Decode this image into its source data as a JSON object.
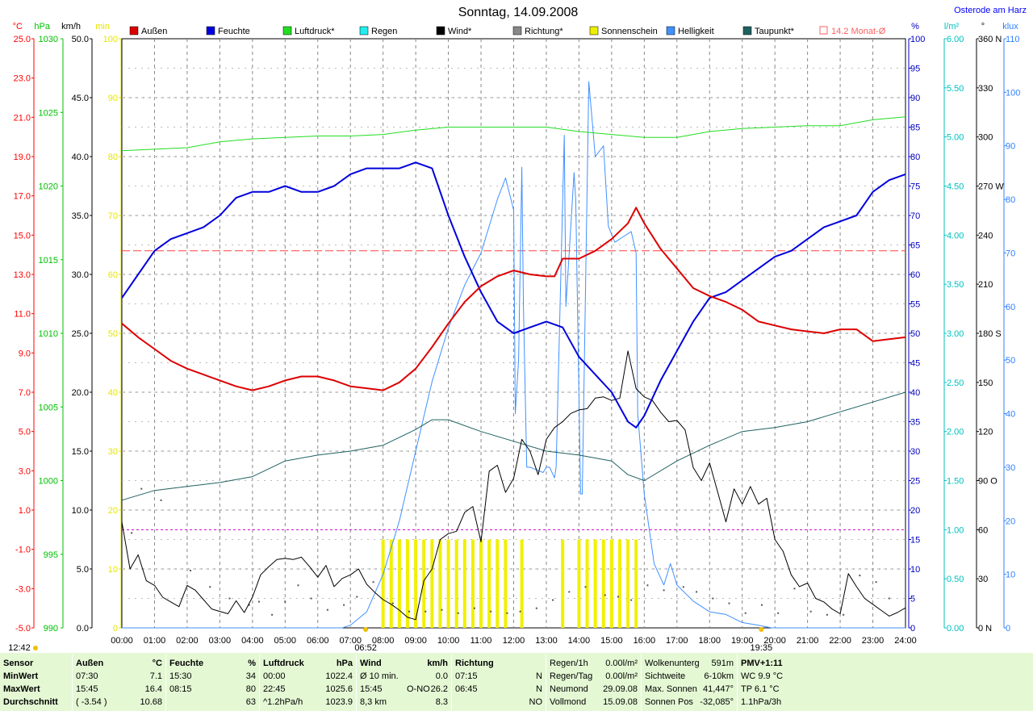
{
  "chart_data": {
    "type": "line",
    "title": "Sonntag, 14.09.2008",
    "location": "Osterode am Harz",
    "x_ticks": [
      "00:00",
      "01:00",
      "02:00",
      "03:00",
      "04:00",
      "05:00",
      "06:00",
      "07:00",
      "08:00",
      "09:00",
      "10:00",
      "11:00",
      "12:00",
      "13:00",
      "14:00",
      "15:00",
      "16:00",
      "17:00",
      "18:00",
      "19:00",
      "20:00",
      "21:00",
      "22:00",
      "23:00",
      "24:00"
    ],
    "axes": {
      "temp": {
        "unit": "°C",
        "ticks": [
          "25.0",
          "23.0",
          "21.0",
          "19.0",
          "17.0",
          "15.0",
          "13.0",
          "11.0",
          "9.0",
          "7.0",
          "5.0",
          "3.0",
          "1.0",
          "-1.0",
          "-3.0",
          "-5.0"
        ],
        "color": "#ff0000"
      },
      "pressure": {
        "unit": "hPa",
        "ticks": [
          "1030",
          "1025",
          "1020",
          "1015",
          "1010",
          "1005",
          "1000",
          "995",
          "990"
        ],
        "color": "#00c000"
      },
      "wind": {
        "unit": "km/h",
        "ticks": [
          "50.0",
          "45.0",
          "40.0",
          "35.0",
          "30.0",
          "25.0",
          "20.0",
          "15.0",
          "10.0",
          "5.0",
          "0.0"
        ],
        "color": "#000000"
      },
      "sun": {
        "unit": "min",
        "ticks": [
          "100",
          "90",
          "80",
          "70",
          "60",
          "50",
          "40",
          "30",
          "20",
          "10",
          "0"
        ],
        "color": "#e6e600"
      },
      "humidity": {
        "unit": "%",
        "ticks": [
          "100",
          "95",
          "90",
          "85",
          "80",
          "75",
          "70",
          "65",
          "60",
          "55",
          "50",
          "45",
          "40",
          "35",
          "30",
          "25",
          "20",
          "15",
          "10",
          "5",
          "0"
        ],
        "color": "#0000c0"
      },
      "rain": {
        "unit": "l/m²",
        "ticks": [
          "6.00",
          "5.50",
          "5.00",
          "4.50",
          "4.00",
          "3.50",
          "3.00",
          "2.50",
          "2.00",
          "1.50",
          "1.00",
          "0.50",
          "0.00"
        ],
        "color": "#00c0c0"
      },
      "direction": {
        "unit": "°",
        "ticks": [
          "360 N",
          "330",
          "300",
          "270 W",
          "240",
          "210",
          "180 S",
          "150",
          "120",
          "90 O",
          "60",
          "30",
          "0   N"
        ],
        "color": "#000000"
      },
      "brightness": {
        "unit": "klux",
        "ticks": [
          "110",
          "100",
          "90",
          "80",
          "70",
          "60",
          "50",
          "40",
          "30",
          "20",
          "10",
          "0"
        ],
        "color": "#3080ff"
      }
    },
    "legend": [
      {
        "name": "Außen",
        "color": "#dd0000"
      },
      {
        "name": "Feuchte",
        "color": "#0000dd"
      },
      {
        "name": "Luftdruck*",
        "color": "#22dd22"
      },
      {
        "name": "Regen",
        "color": "#22eeee"
      },
      {
        "name": "Wind*",
        "color": "#000000"
      },
      {
        "name": "Richtung*",
        "color": "#888888"
      },
      {
        "name": "Sonnenschein",
        "color": "#eeee00"
      },
      {
        "name": "Helligkeit",
        "color": "#4090ff"
      },
      {
        "name": "Taupunkt*",
        "color": "#206060"
      },
      {
        "name": "14.2 Monat-Ø",
        "color": "#ff6060",
        "outline": true
      }
    ],
    "month_avg_temp": 14.2,
    "sunrise": "06:52",
    "sunset": "19:35",
    "moon_culmination": "12:42",
    "series": {
      "temperature": {
        "x": [
          0,
          0.5,
          1,
          1.5,
          2,
          2.5,
          3,
          3.5,
          4,
          4.5,
          5,
          5.5,
          6,
          6.5,
          7,
          7.5,
          8,
          8.5,
          9,
          9.5,
          10,
          10.5,
          11,
          11.5,
          12,
          12.5,
          13,
          13.25,
          13.5,
          14,
          14.5,
          15,
          15.5,
          15.75,
          16,
          16.5,
          17,
          17.5,
          18,
          18.5,
          19,
          19.5,
          20,
          20.5,
          21,
          21.5,
          22,
          22.5,
          23,
          23.5,
          24
        ],
        "y": [
          10.5,
          9.8,
          9.2,
          8.6,
          8.2,
          7.9,
          7.6,
          7.3,
          7.1,
          7.3,
          7.6,
          7.8,
          7.8,
          7.6,
          7.3,
          7.2,
          7.1,
          7.5,
          8.2,
          9.3,
          10.5,
          11.6,
          12.4,
          12.9,
          13.2,
          13.0,
          12.9,
          12.9,
          13.8,
          13.8,
          14.2,
          14.8,
          15.6,
          16.4,
          15.6,
          14.3,
          13.3,
          12.3,
          11.9,
          11.6,
          11.2,
          10.6,
          10.4,
          10.2,
          10.1,
          10.0,
          10.2,
          10.2,
          9.6,
          9.7,
          9.8
        ]
      },
      "humidity": {
        "x": [
          0,
          0.5,
          1,
          1.5,
          2,
          2.5,
          3,
          3.5,
          4,
          4.5,
          5,
          5.5,
          6,
          6.5,
          7,
          7.5,
          8,
          8.5,
          9,
          9.5,
          10,
          10.5,
          11,
          11.5,
          12,
          12.5,
          13,
          13.5,
          14,
          14.5,
          15,
          15.5,
          15.75,
          16,
          16.5,
          17,
          17.5,
          18,
          18.5,
          19,
          19.5,
          20,
          20.5,
          21,
          21.5,
          22,
          22.5,
          23,
          23.5,
          24
        ],
        "y": [
          56,
          60,
          64,
          66,
          67,
          68,
          70,
          73,
          74,
          74,
          75,
          74,
          74,
          75,
          77,
          78,
          78,
          78,
          79,
          78,
          70,
          63,
          57,
          52,
          50,
          51,
          52,
          51,
          46,
          43,
          40,
          35,
          34,
          36,
          42,
          47,
          52,
          56,
          57,
          59,
          61,
          63,
          64,
          66,
          68,
          69,
          70,
          74,
          76,
          77
        ]
      },
      "pressure": {
        "x": [
          0,
          1,
          2,
          3,
          3.5,
          4,
          5,
          6,
          7,
          8,
          9,
          10,
          11,
          12,
          13,
          14,
          15,
          16,
          17,
          18,
          19,
          20,
          21,
          22,
          23,
          24
        ],
        "y": [
          1022.4,
          1022.5,
          1022.6,
          1023.0,
          1023.1,
          1023.2,
          1023.3,
          1023.4,
          1023.4,
          1023.5,
          1023.8,
          1024.0,
          1024.0,
          1024.0,
          1024.0,
          1023.7,
          1023.5,
          1023.3,
          1023.3,
          1023.7,
          1023.9,
          1024.0,
          1024.1,
          1024.1,
          1024.5,
          1024.7
        ]
      },
      "dewpoint": {
        "x": [
          0,
          1,
          2,
          3,
          4,
          5,
          6,
          7,
          8,
          9,
          9.5,
          10,
          11,
          12,
          13,
          14,
          15,
          15.5,
          16,
          17,
          18,
          19,
          20,
          21,
          22,
          23,
          24
        ],
        "y": [
          1.5,
          2.0,
          2.2,
          2.4,
          2.7,
          3.5,
          3.8,
          4.0,
          4.3,
          5.1,
          5.6,
          5.6,
          5.0,
          4.5,
          4.0,
          3.8,
          3.5,
          2.8,
          2.5,
          3.5,
          4.3,
          5.0,
          5.2,
          5.5,
          6.0,
          6.5,
          7.0
        ]
      },
      "wind": {
        "x": [
          0,
          0.25,
          0.5,
          0.75,
          1,
          1.25,
          1.5,
          1.75,
          2,
          2.25,
          2.5,
          2.75,
          3,
          3.25,
          3.5,
          3.75,
          4,
          4.25,
          4.5,
          4.75,
          5,
          5.25,
          5.5,
          5.75,
          6,
          6.25,
          6.5,
          6.75,
          7,
          7.25,
          7.5,
          7.75,
          8,
          8.25,
          8.5,
          8.75,
          9,
          9.25,
          9.5,
          9.75,
          10,
          10.25,
          10.5,
          10.75,
          11,
          11.25,
          11.5,
          11.75,
          12,
          12.25,
          12.5,
          12.75,
          13,
          13.25,
          13.5,
          13.75,
          14,
          14.25,
          14.5,
          14.75,
          15,
          15.25,
          15.5,
          15.75,
          16,
          16.25,
          16.5,
          16.75,
          17,
          17.25,
          17.5,
          17.75,
          18,
          18.25,
          18.5,
          18.75,
          19,
          19.25,
          19.5,
          19.75,
          20,
          20.25,
          20.5,
          20.75,
          21,
          21.25,
          21.5,
          21.75,
          22,
          22.25,
          22.5,
          22.75,
          23,
          23.25,
          23.5,
          23.75,
          24
        ],
        "y": [
          9.0,
          5.0,
          6.2,
          4.0,
          3.6,
          2.6,
          2.2,
          1.8,
          3.6,
          3.2,
          2.4,
          1.6,
          1.4,
          1.2,
          2.3,
          1.3,
          2.6,
          4.5,
          5.2,
          5.8,
          5.9,
          5.8,
          6.0,
          5.2,
          4.3,
          5.3,
          3.5,
          4.2,
          4.5,
          5.0,
          3.7,
          3.0,
          2.4,
          2.0,
          1.5,
          0.9,
          0.7,
          4.0,
          5.0,
          7.5,
          8.0,
          8.2,
          9.8,
          10.3,
          7.3,
          13.3,
          13.8,
          11.5,
          12.7,
          16.0,
          15.0,
          13.0,
          16.0,
          17.0,
          17.5,
          18.2,
          18.5,
          18.6,
          19.5,
          19.6,
          19.3,
          19.5,
          23.5,
          20.3,
          19.6,
          19.3,
          18.3,
          17.5,
          17.6,
          16.8,
          13.6,
          12.5,
          14.0,
          11.5,
          9.0,
          11.8,
          10.5,
          12.0,
          10.5,
          11.0,
          7.5,
          6.5,
          4.5,
          3.5,
          3.8,
          2.5,
          2.2,
          1.6,
          1.2,
          4.6,
          3.5,
          2.5,
          2.0,
          1.5,
          1.0,
          1.3,
          1.7
        ]
      },
      "brightness": {
        "x": [
          0,
          6.75,
          7,
          7.5,
          8,
          8.5,
          9,
          9.5,
          10,
          10.5,
          11,
          11.5,
          11.75,
          12,
          12.05,
          12.15,
          12.25,
          12.3,
          12.4,
          12.5,
          12.7,
          12.9,
          13,
          13.1,
          13.25,
          13.3,
          13.55,
          13.6,
          13.7,
          13.85,
          13.9,
          14.05,
          14.1,
          14.3,
          14.5,
          14.75,
          14.9,
          15.1,
          15.35,
          15.6,
          15.75,
          15.8,
          16.0,
          16.3,
          16.6,
          16.8,
          17.0,
          17.5,
          18.0,
          18.5,
          19.0,
          19.5,
          19.9,
          24
        ],
        "y": [
          0,
          0,
          0.5,
          3,
          10,
          20,
          33,
          46,
          56,
          64,
          70,
          80,
          84,
          78,
          40,
          50,
          86,
          60,
          30,
          30,
          29.5,
          29,
          30,
          30,
          28,
          30,
          92,
          60,
          70,
          85,
          80,
          25,
          25,
          102,
          88,
          90,
          75,
          72,
          73,
          74,
          70,
          40,
          25,
          12,
          8,
          12,
          8,
          5,
          3,
          2.5,
          1,
          0.5,
          0,
          0
        ]
      },
      "sunshine": {
        "x": [
          8.0,
          8.25,
          8.5,
          8.75,
          9.0,
          9.25,
          9.5,
          9.75,
          10.0,
          10.25,
          10.5,
          10.75,
          11.0,
          11.25,
          11.5,
          11.75,
          12.25,
          13.5,
          14.0,
          14.25,
          14.5,
          14.75,
          15.0,
          15.25,
          15.5,
          15.75
        ],
        "y": [
          15,
          15,
          15,
          15,
          15,
          15,
          15,
          15,
          15,
          15,
          15,
          15,
          15,
          15,
          15,
          15,
          15,
          15,
          15,
          15,
          15,
          15,
          15,
          15,
          15,
          15
        ]
      },
      "direction": {
        "x": [
          0.3,
          0.6,
          1.2,
          2.1,
          2.7,
          3.3,
          3.9,
          4.2,
          4.6,
          5.0,
          5.4,
          5.8,
          6.3,
          6.8,
          7.2,
          7.7,
          8.3,
          8.8,
          9.3,
          9.8,
          10.3,
          10.8,
          11.3,
          11.8,
          12.2,
          12.7,
          13.2,
          13.7,
          14.2,
          14.8,
          15.2,
          15.6,
          16.1,
          16.6,
          17.2,
          17.6,
          18.1,
          18.6,
          19.1,
          19.6,
          20.1,
          20.6,
          21.1,
          21.6,
          22.1,
          22.6,
          23.1,
          23.5
        ],
        "y": [
          58,
          85,
          78,
          35,
          25,
          18,
          14,
          16,
          8,
          16,
          26,
          18,
          11,
          14,
          19,
          28,
          15,
          10,
          10,
          11,
          9,
          12,
          10,
          9,
          10,
          12,
          17,
          22,
          25,
          20,
          19,
          17,
          26,
          23,
          25,
          22,
          18,
          15,
          9,
          14,
          9,
          24,
          10,
          8,
          8,
          32,
          28,
          18
        ]
      }
    }
  },
  "stats": {
    "moon_time": "12:42",
    "sunrise_label": "06:52",
    "sunset_label": "19:35",
    "row_labels": [
      "Sensor",
      "MinWert",
      "MaxWert",
      "Durchschnitt"
    ],
    "aussen": {
      "title": "Außen",
      "unit": "°C",
      "min_time": "07:30",
      "min": "7.1",
      "max_time": "15:45",
      "max": "16.4",
      "avg_note": "( -3.54 )",
      "avg": "10.68"
    },
    "feuchte": {
      "title": "Feuchte",
      "unit": "%",
      "min_time": "15:30",
      "min": "34",
      "max_time": "08:15",
      "max": "80",
      "avg": "63"
    },
    "luftdruck": {
      "title": "Luftdruck",
      "unit": "hPa",
      "min_time": "00:00",
      "min": "1022.4",
      "max_time": "22:45",
      "max": "1025.6",
      "trend": "^1.2hPa/h",
      "avg": "1023.9"
    },
    "wind": {
      "title": "Wind",
      "unit": "km/h",
      "min_label": "Ø 10 min.",
      "min": "0.0",
      "max_time": "15:45",
      "max_dir": "O-NO",
      "max": "26.2",
      "dist": "8,3 km",
      "avg": "8.3"
    },
    "richtung": {
      "title": "Richtung",
      "min_time": "07:15",
      "min": "N",
      "max_time": "06:45",
      "max": "N",
      "avg": "NO"
    },
    "regen": {
      "rows": [
        [
          "Regen/1h",
          "0.00l/m²"
        ],
        [
          "Regen/Tag",
          "0.00l/m²"
        ],
        [
          "Neumond",
          "29.09.08"
        ],
        [
          "Vollmond",
          "15.09.08"
        ]
      ]
    },
    "misc": {
      "rows": [
        [
          "Wolkenunterg",
          "591m"
        ],
        [
          "Sichtweite",
          "6-10km"
        ],
        [
          "Max. Sonnen",
          "41,447°"
        ],
        [
          "Sonnen Pos",
          "-32,085°"
        ]
      ]
    },
    "pmv": {
      "title": "PMV+1:11",
      "rows": [
        "WC 9.9 °C",
        "TP 6.1 °C",
        "1.1hPa/3h"
      ]
    }
  }
}
